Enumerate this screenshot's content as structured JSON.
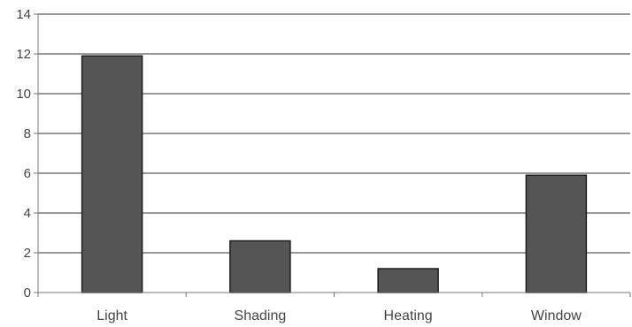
{
  "chart_data": {
    "type": "bar",
    "title": "",
    "xlabel": "",
    "ylabel": "",
    "categories": [
      "Light",
      "Shading",
      "Heating",
      "Window"
    ],
    "values": [
      11.9,
      2.6,
      1.2,
      5.9
    ],
    "ylim": [
      0,
      14
    ],
    "yticks": [
      0,
      2,
      4,
      6,
      8,
      10,
      12,
      14
    ],
    "grid": true,
    "legend": "none",
    "colors": {
      "bar_fill": "#555555",
      "bar_stroke": "#1e1e1e",
      "grid": "#333333",
      "axis": "#777777",
      "text": "#444444"
    }
  }
}
